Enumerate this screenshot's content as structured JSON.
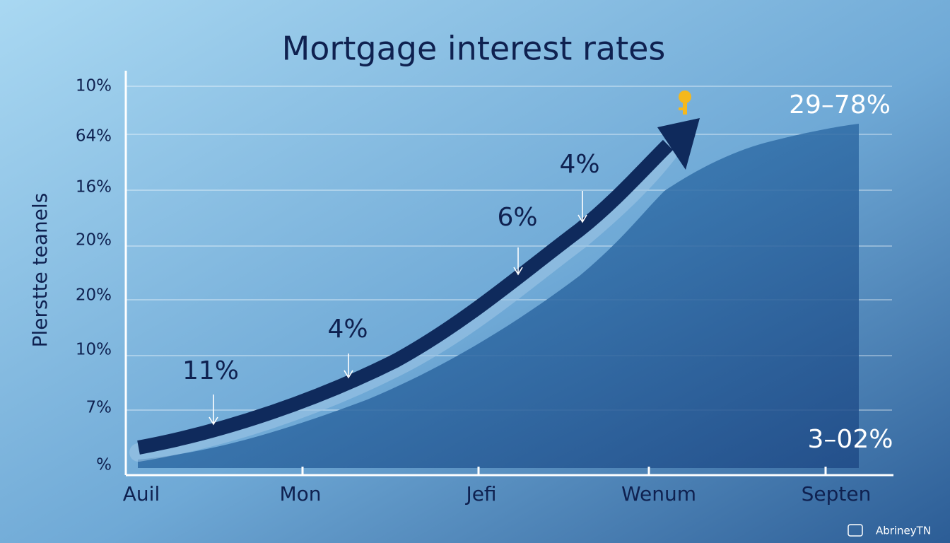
{
  "title": "Mortgage interest rates",
  "y_axis_label": "Plerstte teanels",
  "y_labels": [
    "10%",
    "64%",
    "16%",
    "20%",
    "20%",
    "10%",
    "7%",
    "%"
  ],
  "x_labels": [
    "Auil",
    "Mon",
    "Jefi",
    "Wenum",
    "Septen"
  ],
  "annotations": [
    "11%",
    "4%",
    "6%",
    "4%",
    "29–78%",
    "3–02%"
  ],
  "watermark": "AbrineyTN"
}
